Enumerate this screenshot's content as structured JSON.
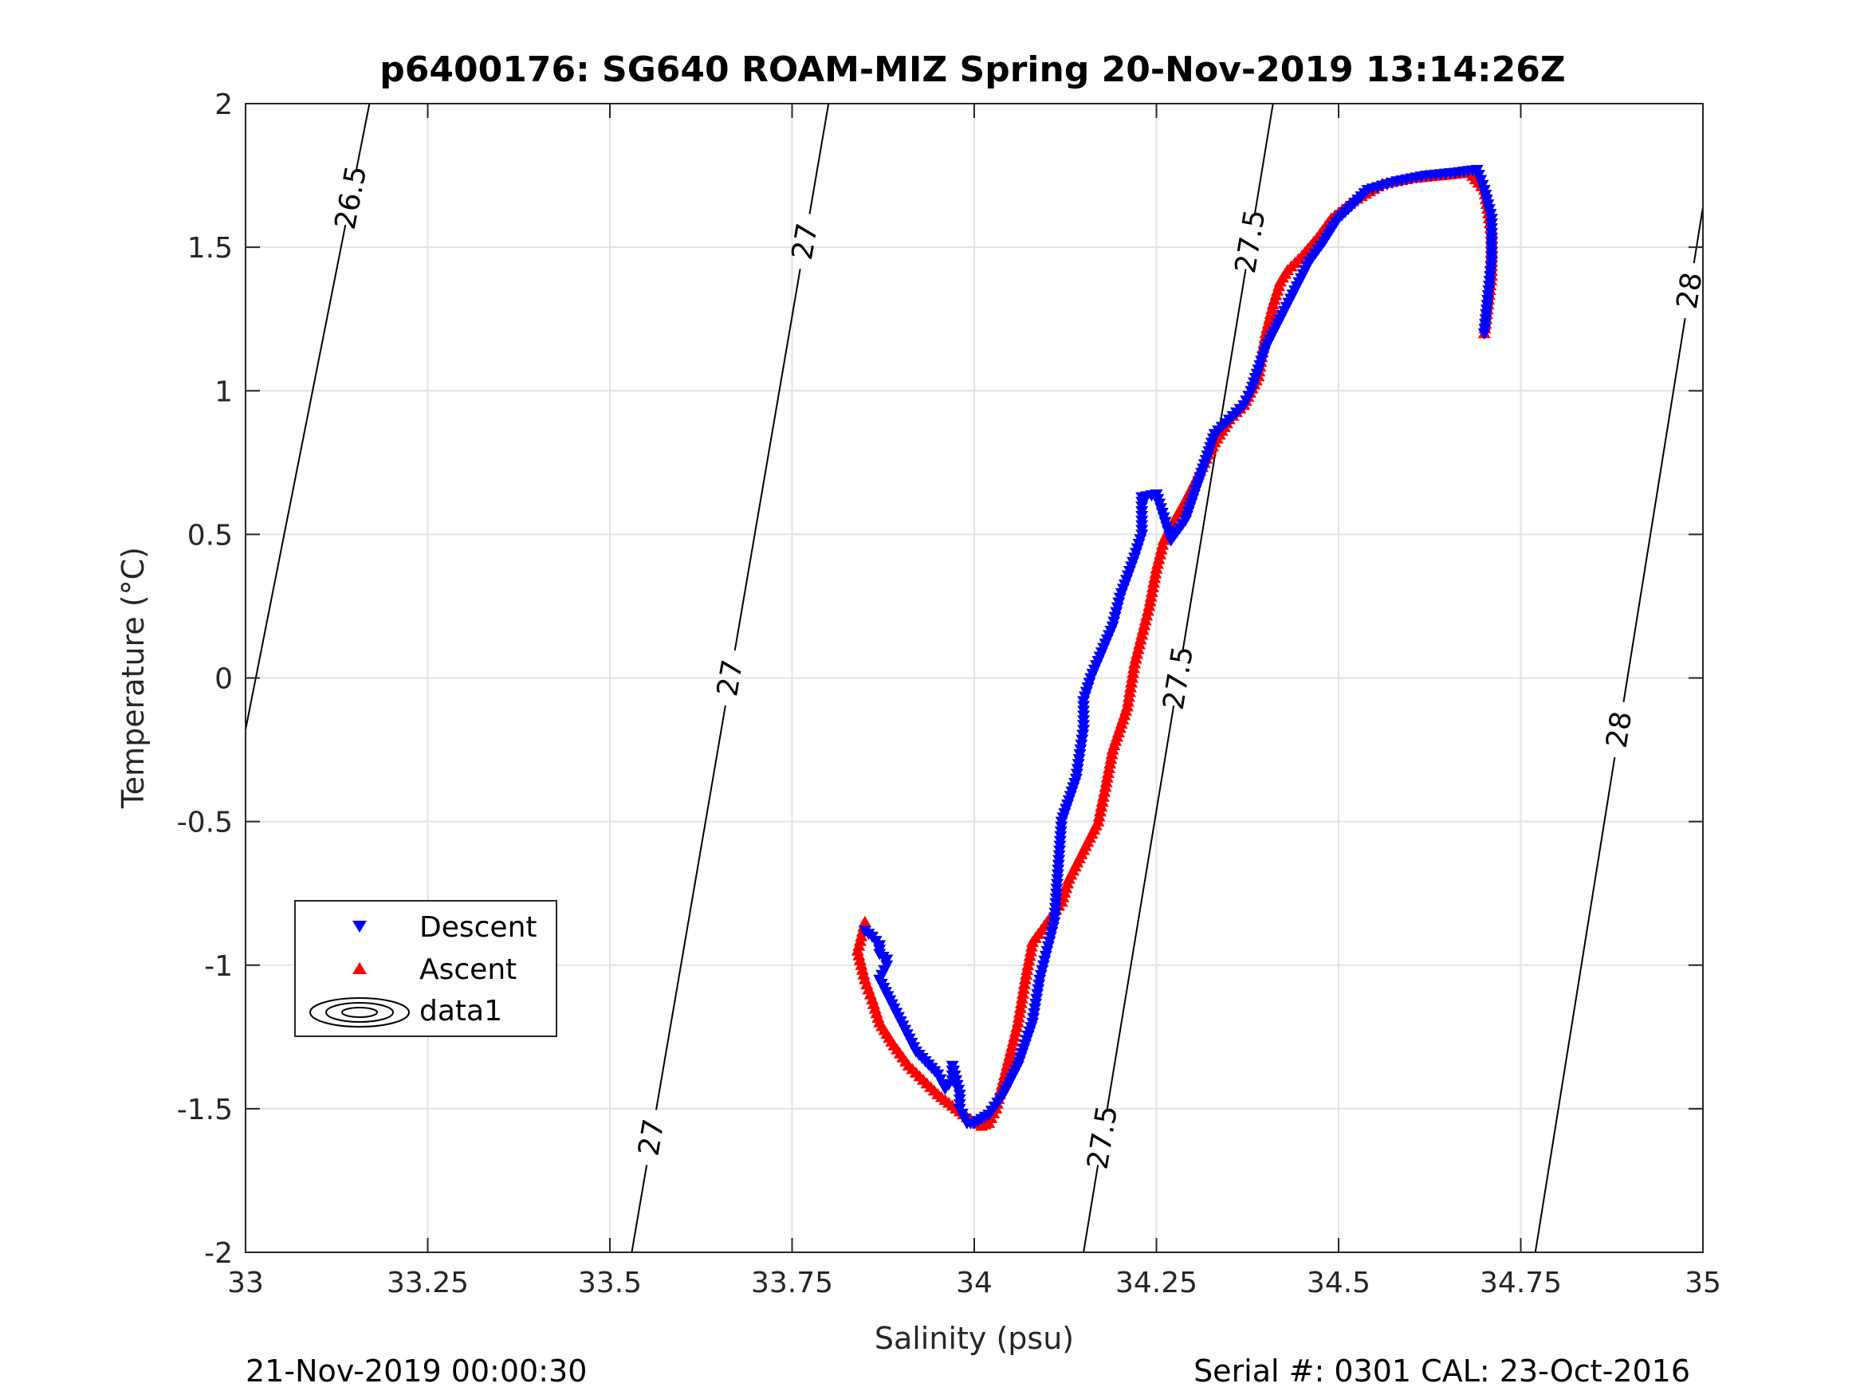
{
  "chart_data": {
    "type": "scatter",
    "title": "p6400176: SG640 ROAM-MIZ Spring 20-Nov-2019 13:14:26Z",
    "xlabel": "Salinity (psu)",
    "ylabel": "Temperature (°C)",
    "xlim": [
      33,
      35
    ],
    "ylim": [
      -2,
      2
    ],
    "x_ticks": [
      33,
      33.25,
      33.5,
      33.75,
      34,
      34.25,
      34.5,
      34.75,
      35
    ],
    "x_tick_labels": [
      "33",
      "33.25",
      "33.5",
      "33.75",
      "34",
      "34.25",
      "34.5",
      "34.75",
      "35"
    ],
    "y_ticks": [
      -2,
      -1.5,
      -1,
      -0.5,
      0,
      0.5,
      1,
      1.5,
      2
    ],
    "y_tick_labels": [
      "-2",
      "-1.5",
      "-1",
      "-0.5",
      "0",
      "0.5",
      "1",
      "1.5",
      "2"
    ],
    "grid": true,
    "legend_position": "lower-left",
    "footer_left": "21-Nov-2019 00:00:30",
    "footer_right": "Serial #: 0301  CAL: 23-Oct-2016",
    "series": [
      {
        "name": "Descent",
        "marker": "triangle-down",
        "color": "#0000ff",
        "x": [
          33.85,
          33.86,
          33.87,
          33.87,
          33.88,
          33.88,
          33.87,
          33.89,
          33.92,
          33.95,
          33.96,
          33.97,
          33.97,
          33.98,
          33.98,
          33.99,
          34.0,
          34.02,
          34.04,
          34.06,
          34.08,
          34.09,
          34.11,
          34.12,
          34.14,
          34.15,
          34.15,
          34.16,
          34.18,
          34.19,
          34.2,
          34.22,
          34.23,
          34.23,
          34.25,
          34.27,
          34.29,
          34.31,
          34.33,
          34.35,
          34.37,
          34.38,
          34.4,
          34.42,
          34.44,
          34.46,
          34.48,
          34.5,
          34.54,
          34.58,
          34.62,
          34.66,
          34.69,
          34.7,
          34.71,
          34.71,
          34.7
        ],
        "y": [
          -0.88,
          -0.9,
          -0.93,
          -0.96,
          -0.98,
          -1.0,
          -1.05,
          -1.15,
          -1.3,
          -1.38,
          -1.43,
          -1.4,
          -1.35,
          -1.45,
          -1.5,
          -1.55,
          -1.55,
          -1.52,
          -1.45,
          -1.35,
          -1.2,
          -1.05,
          -0.85,
          -0.5,
          -0.35,
          -0.18,
          -0.08,
          0.0,
          0.12,
          0.18,
          0.28,
          0.42,
          0.5,
          0.63,
          0.64,
          0.48,
          0.55,
          0.7,
          0.85,
          0.9,
          0.95,
          1.0,
          1.15,
          1.25,
          1.35,
          1.45,
          1.52,
          1.6,
          1.7,
          1.73,
          1.75,
          1.76,
          1.77,
          1.7,
          1.6,
          1.45,
          1.2
        ]
      },
      {
        "name": "Ascent",
        "marker": "triangle-up",
        "color": "#ff0000",
        "x": [
          33.85,
          33.84,
          33.85,
          33.86,
          33.87,
          33.89,
          33.91,
          33.93,
          33.95,
          33.97,
          33.99,
          34.01,
          34.02,
          34.03,
          34.04,
          34.05,
          34.06,
          34.07,
          34.08,
          34.1,
          34.12,
          34.13,
          34.15,
          34.17,
          34.18,
          34.19,
          34.21,
          34.22,
          34.23,
          34.24,
          34.25,
          34.26,
          34.27,
          34.29,
          34.31,
          34.33,
          34.35,
          34.37,
          34.39,
          34.4,
          34.41,
          34.42,
          34.43,
          34.45,
          34.47,
          34.49,
          34.52,
          34.56,
          34.6,
          34.64,
          34.68,
          34.7,
          34.71,
          34.71,
          34.7
        ],
        "y": [
          -0.85,
          -0.95,
          -1.05,
          -1.12,
          -1.2,
          -1.28,
          -1.35,
          -1.4,
          -1.45,
          -1.49,
          -1.53,
          -1.56,
          -1.55,
          -1.5,
          -1.4,
          -1.3,
          -1.2,
          -1.05,
          -0.92,
          -0.85,
          -0.78,
          -0.7,
          -0.6,
          -0.5,
          -0.38,
          -0.25,
          -0.1,
          0.05,
          0.15,
          0.25,
          0.38,
          0.48,
          0.53,
          0.62,
          0.72,
          0.82,
          0.9,
          0.95,
          1.05,
          1.2,
          1.3,
          1.38,
          1.42,
          1.47,
          1.53,
          1.6,
          1.66,
          1.72,
          1.74,
          1.75,
          1.76,
          1.7,
          1.55,
          1.4,
          1.2
        ]
      }
    ],
    "contours": {
      "legend_label": "data1",
      "lines": [
        {
          "level": "26.5",
          "x": [
            33.0,
            33.17
          ],
          "y": [
            -0.18,
            2.0
          ],
          "labels": [
            "26.5"
          ]
        },
        {
          "level": "27",
          "x": [
            33.53,
            33.8
          ],
          "y": [
            -2.0,
            2.0
          ],
          "labels": [
            "27",
            "27",
            "27"
          ]
        },
        {
          "level": "27.5",
          "x": [
            34.15,
            34.41
          ],
          "y": [
            -2.0,
            2.0
          ],
          "labels": [
            "27.5",
            "27.5",
            "27.5"
          ]
        },
        {
          "level": "28",
          "x": [
            34.77,
            35.0
          ],
          "y": [
            -2.0,
            1.64
          ],
          "labels": [
            "28",
            "28"
          ]
        }
      ]
    }
  }
}
